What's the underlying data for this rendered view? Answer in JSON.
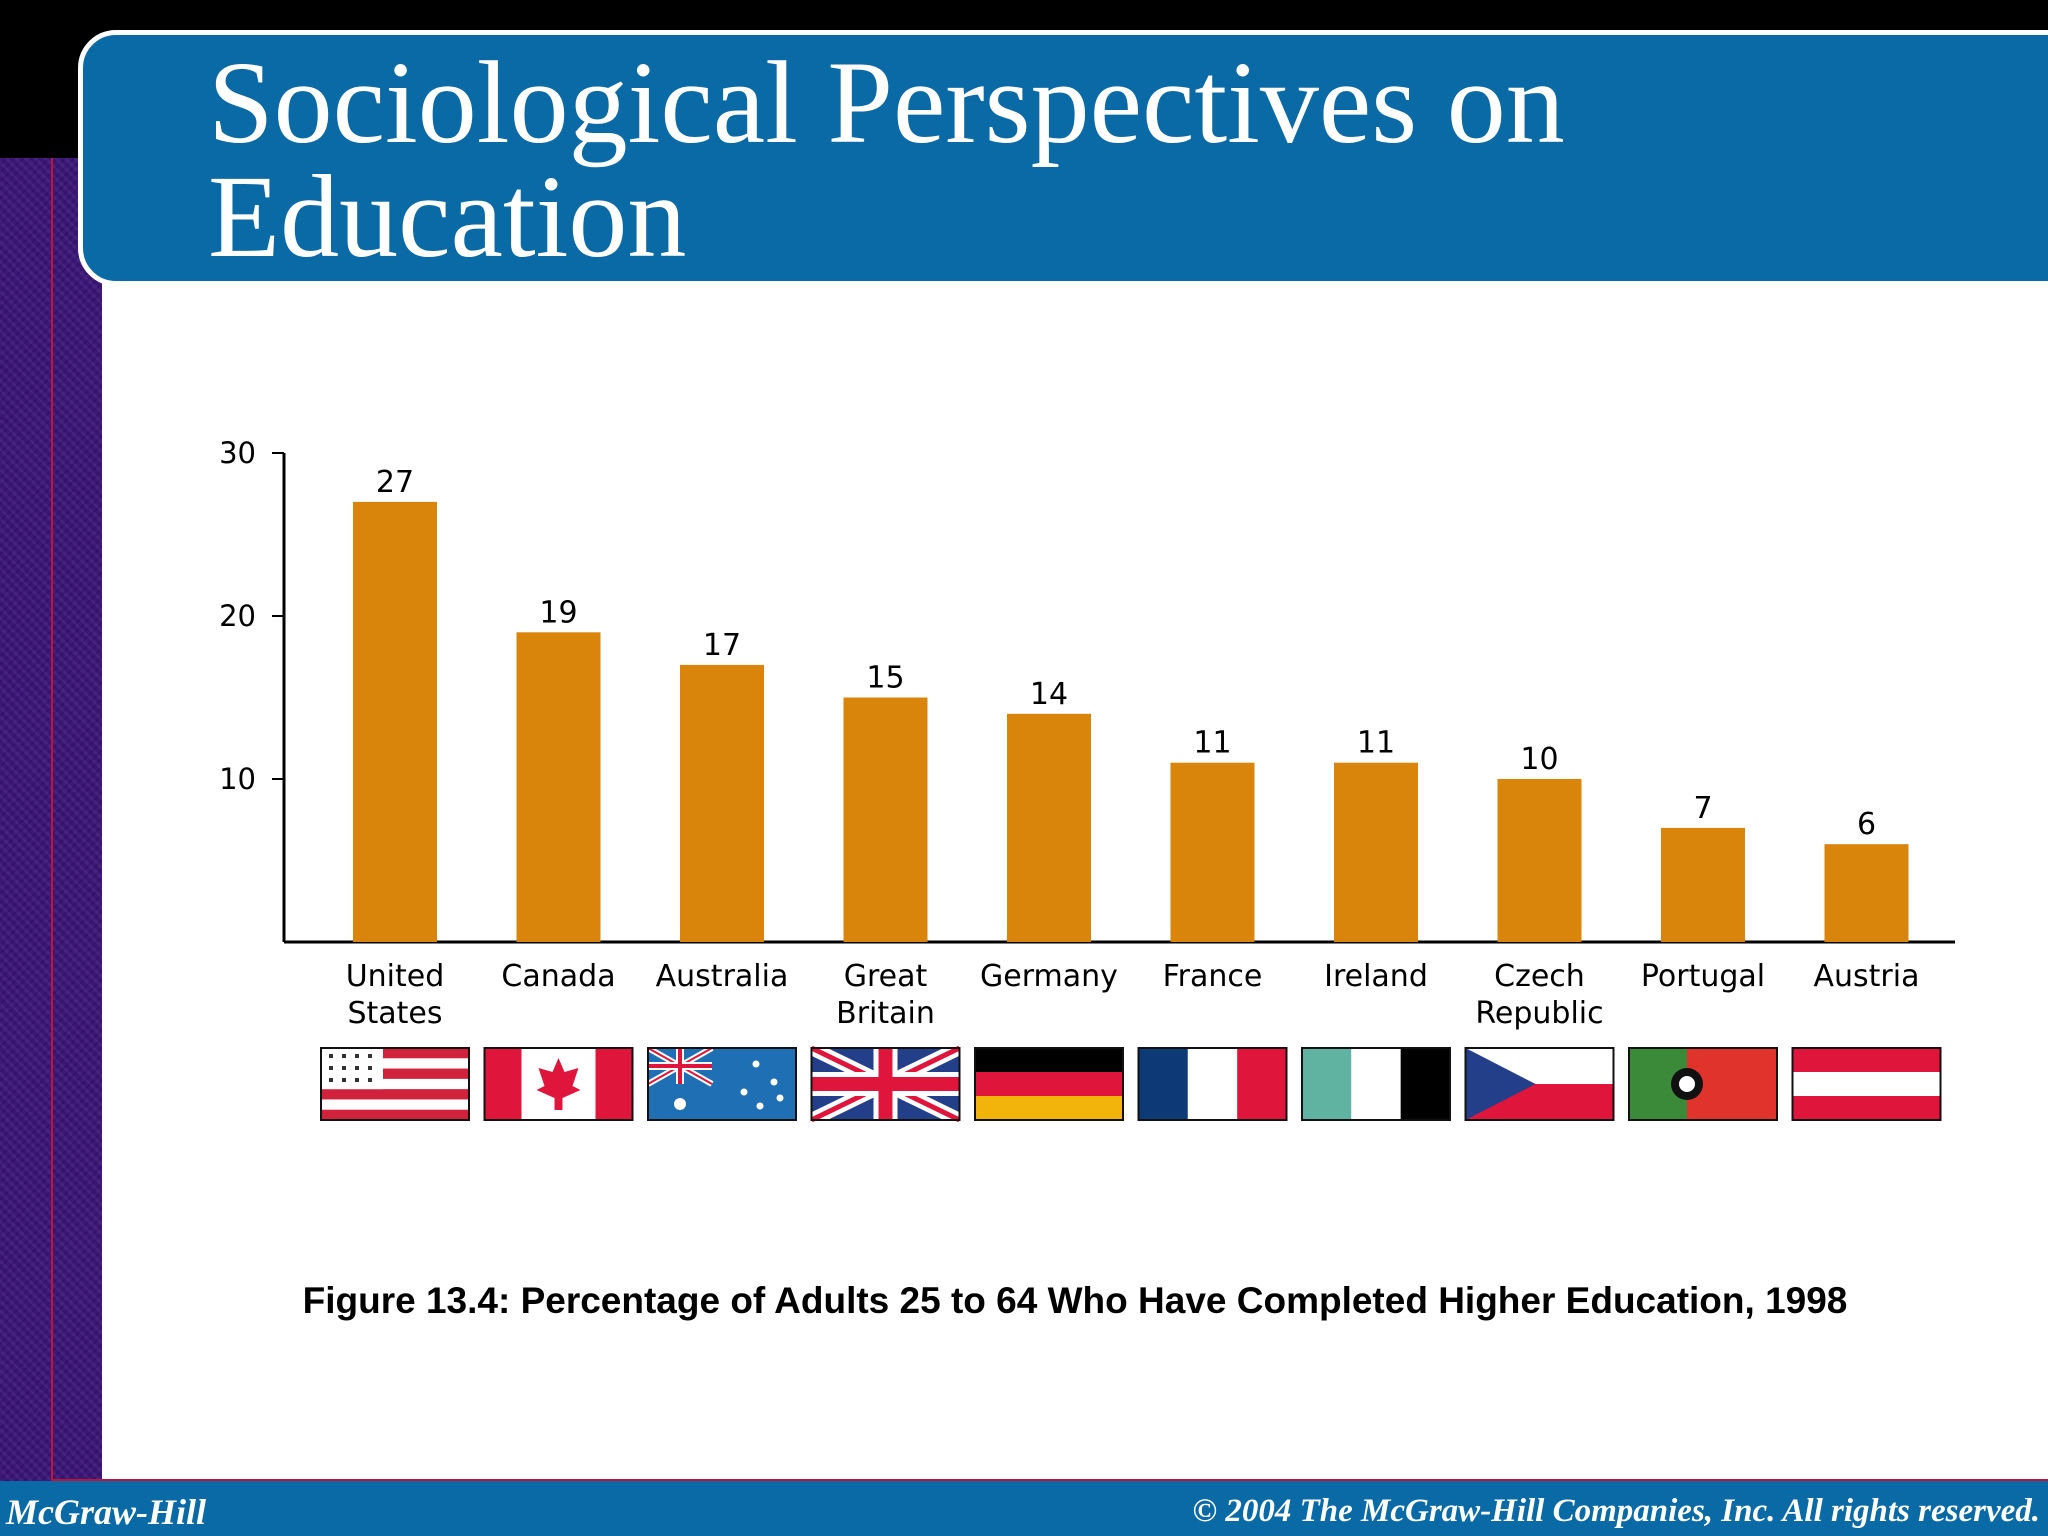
{
  "slide": {
    "title_line1": "Sociological Perspectives on",
    "title_line2": "Education",
    "caption": "Figure 13.4: Percentage of Adults 25 to 64 Who Have Completed Higher Education, 1998"
  },
  "footer": {
    "left": "McGraw-Hill",
    "right": "© 2004 The McGraw-Hill Companies, Inc. All rights reserved."
  },
  "colors": {
    "title_band": "#0a6aa6",
    "bar": "#d9840b",
    "sidebar": "#3a1378",
    "accent_line": "#c0143c"
  },
  "chart_data": {
    "type": "bar",
    "categories": [
      "United States",
      "Canada",
      "Australia",
      "Great Britain",
      "Germany",
      "France",
      "Ireland",
      "Czech Republic",
      "Portugal",
      "Austria"
    ],
    "category_lines": [
      [
        "United",
        "States"
      ],
      [
        "Canada"
      ],
      [
        "Australia"
      ],
      [
        "Great",
        "Britain"
      ],
      [
        "Germany"
      ],
      [
        "France"
      ],
      [
        "Ireland"
      ],
      [
        "Czech",
        "Republic"
      ],
      [
        "Portugal"
      ],
      [
        "Austria"
      ]
    ],
    "values": [
      27,
      19,
      17,
      15,
      14,
      11,
      11,
      10,
      7,
      6
    ],
    "ylim": [
      0,
      30
    ],
    "yticks": [
      10,
      20,
      30
    ],
    "ytick_labels": [
      "10",
      "20",
      "30"
    ],
    "flags": [
      "us-flag",
      "canada-flag",
      "australia-flag",
      "great-britain-flag",
      "germany-flag",
      "france-flag",
      "ireland-flag",
      "czech-republic-flag",
      "portugal-flag",
      "austria-flag"
    ],
    "title": "",
    "xlabel": "",
    "ylabel": "",
    "grid": false,
    "legend": "none"
  }
}
